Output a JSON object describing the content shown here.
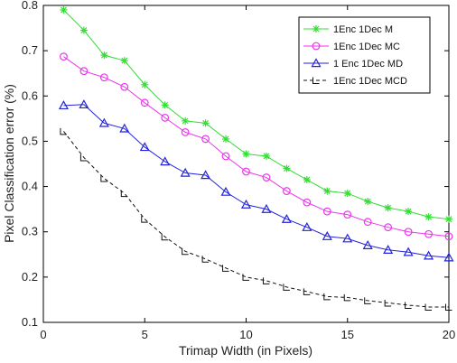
{
  "chart_data": {
    "type": "line",
    "title": "",
    "xlabel": "Trimap Width (in Pixels)",
    "ylabel": "Pixel Classification error (%)",
    "xlim": [
      0,
      20
    ],
    "ylim": [
      0.1,
      0.8
    ],
    "xticks": [
      0,
      5,
      10,
      15,
      20
    ],
    "xtick_labels": [
      "0",
      "5",
      "10",
      "15",
      "20"
    ],
    "yticks": [
      0.1,
      0.2,
      0.3,
      0.4,
      0.5,
      0.6,
      0.7,
      0.8
    ],
    "ytick_labels": [
      "0.1",
      "0.2",
      "0.3",
      "0.4",
      "0.5",
      "0.6",
      "0.7",
      "0.8"
    ],
    "grid": false,
    "legend_position": "top-right",
    "x": [
      1,
      2,
      3,
      4,
      5,
      6,
      7,
      8,
      9,
      10,
      11,
      12,
      13,
      14,
      15,
      16,
      17,
      18,
      19,
      20
    ],
    "series": [
      {
        "name": "1Enc 1Dec M",
        "color": "#33dd33",
        "marker": "star",
        "values": [
          0.79,
          0.745,
          0.69,
          0.678,
          0.625,
          0.58,
          0.545,
          0.54,
          0.505,
          0.472,
          0.467,
          0.44,
          0.415,
          0.39,
          0.385,
          0.367,
          0.353,
          0.345,
          0.333,
          0.328
        ]
      },
      {
        "name": "1Enc 1Dec MC",
        "color": "#ee33ee",
        "marker": "circle",
        "values": [
          0.687,
          0.655,
          0.641,
          0.62,
          0.585,
          0.552,
          0.52,
          0.505,
          0.467,
          0.433,
          0.42,
          0.39,
          0.365,
          0.345,
          0.338,
          0.322,
          0.31,
          0.3,
          0.295,
          0.29
        ]
      },
      {
        "name": "1 Enc 1Dec MD",
        "color": "#2222dd",
        "marker": "triangle",
        "values": [
          0.579,
          0.581,
          0.54,
          0.528,
          0.487,
          0.455,
          0.43,
          0.425,
          0.388,
          0.36,
          0.35,
          0.328,
          0.31,
          0.29,
          0.285,
          0.27,
          0.26,
          0.255,
          0.247,
          0.243
        ]
      },
      {
        "name": "1Enc 1Dec MCD",
        "color": "#111111",
        "marker": "corner",
        "values": [
          0.522,
          0.464,
          0.418,
          0.385,
          0.328,
          0.289,
          0.257,
          0.24,
          0.22,
          0.2,
          0.192,
          0.178,
          0.168,
          0.157,
          0.155,
          0.148,
          0.143,
          0.138,
          0.134,
          0.134
        ]
      }
    ]
  }
}
